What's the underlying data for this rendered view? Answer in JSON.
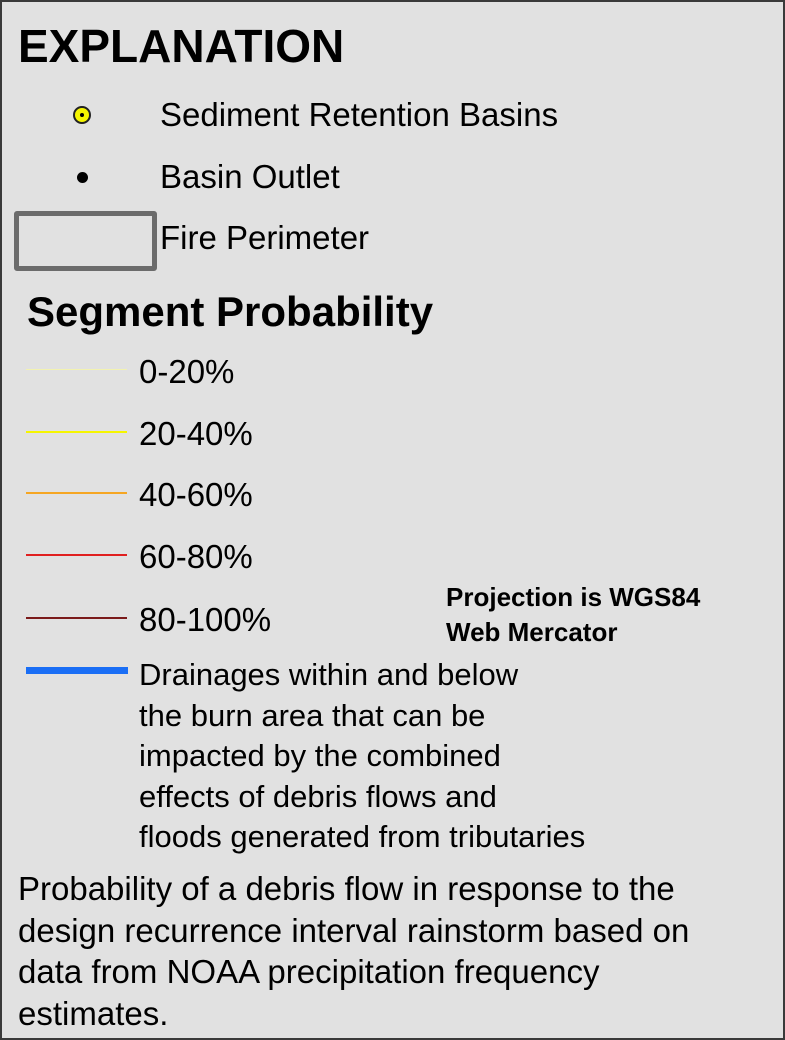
{
  "title": "EXPLANATION",
  "symbols": {
    "basins_label": "Sediment Retention Basins",
    "outlet_label": "Basin Outlet",
    "fire_label": "Fire Perimeter",
    "basin_fill_color": "#f5f500",
    "fire_outline_color": "#6b6b6b"
  },
  "segment": {
    "title": "Segment Probability",
    "classes": [
      {
        "label": "0-20%",
        "color": "#f2f2b0"
      },
      {
        "label": "20-40%",
        "color": "#f5f500"
      },
      {
        "label": "40-60%",
        "color": "#f5a623"
      },
      {
        "label": "60-80%",
        "color": "#e02020"
      },
      {
        "label": "80-100%",
        "color": "#7a1a1a"
      }
    ]
  },
  "drainage": {
    "color": "#1a6ef5",
    "lines": [
      "Drainages within and below",
      "the burn area that can be",
      "impacted by the combined",
      "effects of debris flows and",
      "floods generated from tributaries"
    ]
  },
  "projection": {
    "line1": "Projection is WGS84",
    "line2": "Web Mercator"
  },
  "note": {
    "lines": [
      "Probability of a debris flow in response to the",
      "design recurrence interval rainstorm based on",
      "data from NOAA precipitation frequency",
      "estimates."
    ]
  }
}
